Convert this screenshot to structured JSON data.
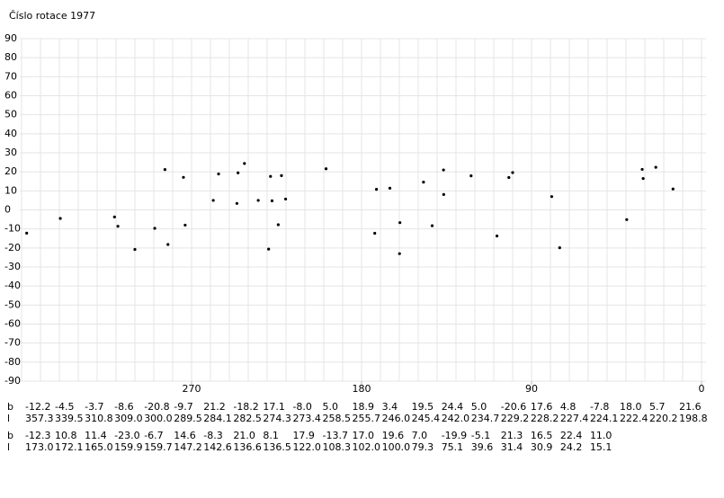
{
  "chart_data": {
    "type": "scatter",
    "title": "Číslo rotace 1977",
    "xlim": [
      360,
      0
    ],
    "ylim": [
      -90,
      90
    ],
    "xticks": [
      270,
      180,
      90,
      0
    ],
    "xgrid": [
      0,
      10,
      20,
      30,
      40,
      50,
      60,
      70,
      80,
      90,
      100,
      110,
      120,
      130,
      140,
      150,
      160,
      170,
      180,
      190,
      200,
      210,
      220,
      230,
      240,
      250,
      260,
      270,
      280,
      290,
      300,
      310,
      320,
      330,
      340,
      350,
      360
    ],
    "yticks": [
      -90,
      -80,
      -70,
      -60,
      -50,
      -40,
      -30,
      -20,
      -10,
      0,
      10,
      20,
      30,
      40,
      50,
      60,
      70,
      80,
      90
    ],
    "grid": true,
    "color": "#000000",
    "row_labels": [
      "b",
      "l"
    ],
    "x": [
      357.3,
      339.5,
      310.8,
      309.0,
      300.0,
      289.5,
      284.1,
      282.5,
      274.3,
      273.4,
      258.5,
      255.7,
      246.0,
      245.4,
      242.0,
      234.7,
      229.2,
      228.2,
      227.4,
      224.1,
      222.4,
      220.2,
      198.8,
      173.0,
      172.1,
      165.0,
      159.9,
      159.7,
      147.2,
      142.6,
      136.6,
      136.5,
      122.0,
      108.3,
      102.0,
      100.0,
      79.3,
      75.1,
      39.6,
      31.4,
      30.9,
      24.2,
      15.1
    ],
    "x_labels": [
      "357.3",
      "339.5",
      "310.8",
      "309.0",
      "300.0",
      "289.5",
      "284.1",
      "282.5",
      "274.3",
      "273.4",
      "258.5",
      "255.7",
      "246.0",
      "245.4",
      "242.0",
      "234.7",
      "229.2",
      "228.2",
      "227.4",
      "224.1",
      "222.4",
      "220.2",
      "198.8",
      "173.0",
      "172.1",
      "165.0",
      "159.9",
      "159.7",
      "147.2",
      "142.6",
      "136.6",
      "136.5",
      "122.0",
      "108.3",
      "102.0",
      "100.0",
      "79.3",
      "75.1",
      "39.6",
      "31.4",
      "30.9",
      "24.2",
      "15.1"
    ],
    "values": [
      -12.2,
      -4.5,
      -3.7,
      -8.6,
      -20.8,
      -9.7,
      21.2,
      -18.2,
      17.1,
      -8.0,
      5.0,
      18.9,
      3.4,
      19.5,
      24.4,
      5.0,
      -20.6,
      17.6,
      4.8,
      -7.8,
      18.0,
      5.7,
      21.6,
      -12.3,
      10.8,
      11.4,
      -23.0,
      -6.7,
      14.6,
      -8.3,
      21.0,
      8.1,
      17.9,
      -13.7,
      17.0,
      19.6,
      7.0,
      -19.9,
      -5.1,
      21.3,
      16.5,
      22.4,
      11.0
    ],
    "value_labels": [
      "-12.2",
      "-4.5",
      "-3.7",
      "-8.6",
      "-20.8",
      "-9.7",
      "21.2",
      "-18.2",
      "17.1",
      "-8.0",
      "5.0",
      "18.9",
      "3.4",
      "19.5",
      "24.4",
      "5.0",
      "-20.6",
      "17.6",
      "4.8",
      "-7.8",
      "18.0",
      "5.7",
      "21.6",
      "-12.3",
      "10.8",
      "11.4",
      "-23.0",
      "-6.7",
      "14.6",
      "-8.3",
      "21.0",
      "8.1",
      "17.9",
      "-13.7",
      "17.0",
      "19.6",
      "7.0",
      "-19.9",
      "-5.1",
      "21.3",
      "16.5",
      "22.4",
      "11.0"
    ]
  }
}
